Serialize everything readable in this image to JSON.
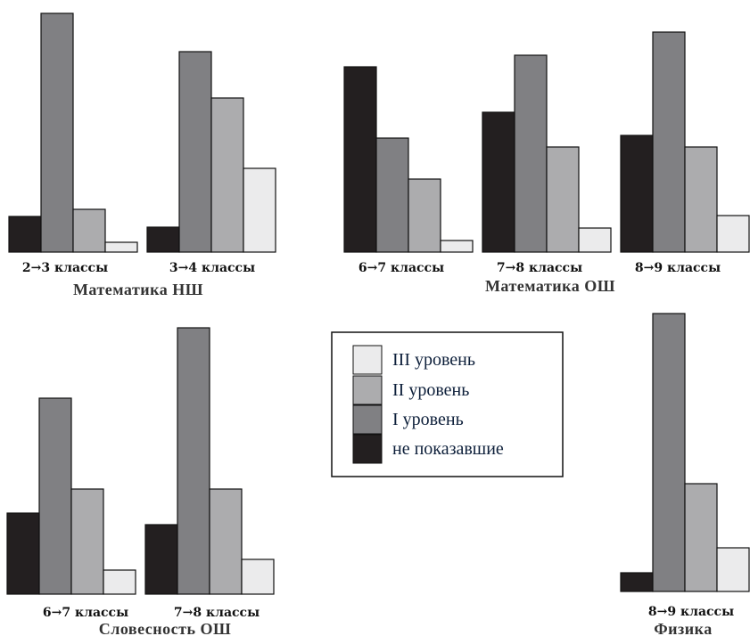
{
  "chart_data": {
    "type": "bar",
    "series": [
      {
        "name": "не показавшие",
        "color": "#231f20"
      },
      {
        "name": "I уровень",
        "color": "#808083"
      },
      {
        "name": "II уровень",
        "color": "#acacae"
      },
      {
        "name": "III уровень",
        "color": "#ebebec"
      }
    ],
    "panels": [
      {
        "subject": "Математика НШ",
        "groups": [
          {
            "label": "2→3 классы",
            "values": [
              40,
              268,
              48,
              11
            ]
          },
          {
            "label": "3→4 классы",
            "values": [
              28,
              225,
              173,
              94
            ]
          }
        ]
      },
      {
        "subject": "Математика ОШ",
        "groups": [
          {
            "label": "6→7 классы",
            "values": [
              208,
              128,
              82,
              13
            ]
          },
          {
            "label": "7→8 классы",
            "values": [
              157,
              221,
              118,
              27
            ]
          },
          {
            "label": "8→9 классы",
            "values": [
              131,
              247,
              118,
              41
            ]
          }
        ]
      },
      {
        "subject": "Словесность ОШ",
        "groups": [
          {
            "label": "6→7 классы",
            "values": [
              91,
              220,
              118,
              27
            ]
          },
          {
            "label": "7→8 классы",
            "values": [
              78,
              299,
              118,
              39
            ]
          }
        ]
      },
      {
        "subject": "Физика",
        "groups": [
          {
            "label": "8→9 классы",
            "values": [
              21,
              312,
              121,
              49
            ]
          }
        ]
      }
    ],
    "legend": {
      "placement": "center",
      "entries": [
        "III уровень",
        "II уровень",
        "I уровень",
        "не показавшие"
      ]
    }
  }
}
